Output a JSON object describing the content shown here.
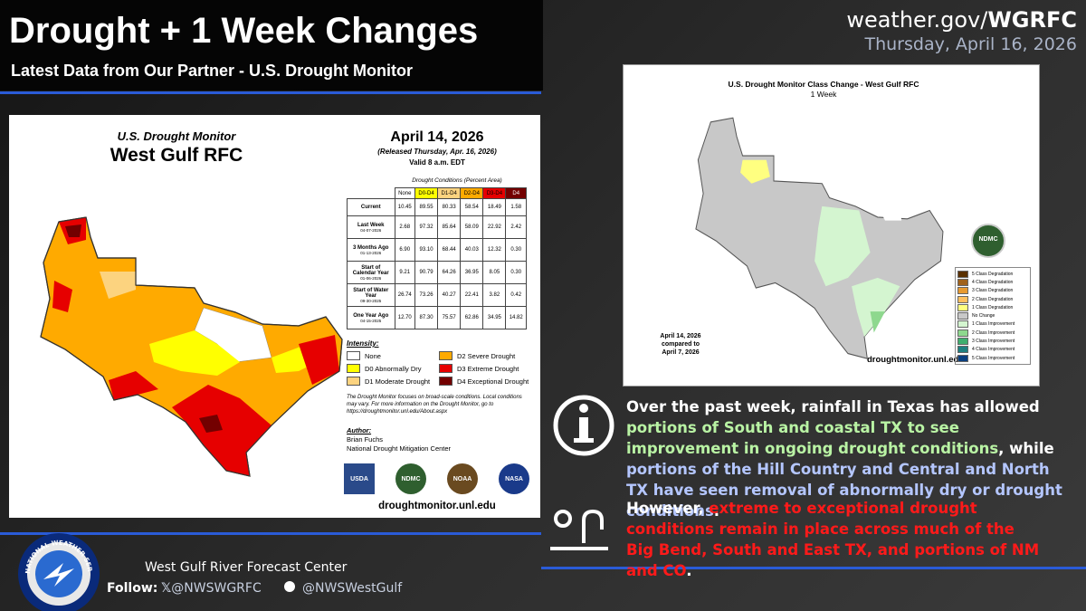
{
  "header": {
    "title": "Drought + 1 Week Changes",
    "subtitle": "Latest Data from Our Partner - U.S. Drought Monitor",
    "site_prefix": "weather.gov/",
    "site_bold": "WGRFC",
    "date": "Thursday, April 16, 2026"
  },
  "usdm": {
    "title": "U.S. Drought Monitor",
    "region": "West Gulf RFC",
    "date": "April 14, 2026",
    "released": "(Released Thursday, Apr. 16, 2026)",
    "valid": "Valid 8 a.m. EDT",
    "table_caption": "Drought Conditions (Percent Area)",
    "columns": [
      {
        "label": "None",
        "color": "#ffffff"
      },
      {
        "label": "D0-D4",
        "color": "#ffff00"
      },
      {
        "label": "D1-D4",
        "color": "#fcd37f"
      },
      {
        "label": "D2-D4",
        "color": "#ffaa00"
      },
      {
        "label": "D3-D4",
        "color": "#e60000"
      },
      {
        "label": "D4",
        "color": "#730000"
      }
    ],
    "rows": [
      {
        "label": "Current",
        "sublabel": null,
        "cells": [
          "10.45",
          "89.55",
          "80.33",
          "58.54",
          "18.49",
          "1.58"
        ]
      },
      {
        "label": "Last Week",
        "sublabel": "04-07-2026",
        "cells": [
          "2.68",
          "97.32",
          "85.64",
          "58.09",
          "22.92",
          "2.42"
        ]
      },
      {
        "label": "3 Months Ago",
        "sublabel": "01-13-2026",
        "cells": [
          "6.90",
          "93.10",
          "68.44",
          "40.03",
          "12.32",
          "0.30"
        ]
      },
      {
        "label": "Start of Calendar Year",
        "sublabel": "01-06-2026",
        "cells": [
          "9.21",
          "90.79",
          "64.26",
          "36.95",
          "8.05",
          "0.30"
        ]
      },
      {
        "label": "Start of Water Year",
        "sublabel": "09-30-2025",
        "cells": [
          "26.74",
          "73.26",
          "40.27",
          "22.41",
          "3.82",
          "0.42"
        ]
      },
      {
        "label": "One Year Ago",
        "sublabel": "04-15-2025",
        "cells": [
          "12.70",
          "87.30",
          "75.57",
          "62.86",
          "34.95",
          "14.82"
        ]
      }
    ],
    "intensity_title": "Intensity:",
    "intensity": [
      {
        "label": "None",
        "color": "#ffffff"
      },
      {
        "label": "D0 Abnormally Dry",
        "color": "#ffff00"
      },
      {
        "label": "D1 Moderate Drought",
        "color": "#fcd37f"
      },
      {
        "label": "D2 Severe Drought",
        "color": "#ffaa00"
      },
      {
        "label": "D3 Extreme Drought",
        "color": "#e60000"
      },
      {
        "label": "D4 Exceptional Drought",
        "color": "#730000"
      }
    ],
    "note": "The Drought Monitor focuses on broad-scale conditions. Local conditions may vary. For more information on the Drought Monitor, go to https://droughtmonitor.unl.edu/About.aspx",
    "author_label": "Author:",
    "author": "Brian Fuchs",
    "author_org": "National Drought Mitigation Center",
    "logos": [
      "USDA",
      "NDMC",
      "NOAA",
      "NASA"
    ],
    "url": "droughtmonitor.unl.edu"
  },
  "change": {
    "title": "U.S. Drought Monitor Class Change - West Gulf RFC",
    "subtitle": "1 Week",
    "compare": [
      "April 14, 2026",
      "compared to",
      "April 7, 2026"
    ],
    "url": "droughtmonitor.unl.edu",
    "logo": "NDMC",
    "legend": [
      {
        "label": "5 Class Degradation",
        "color": "#5a3000"
      },
      {
        "label": "4 Class Degradation",
        "color": "#a0621c"
      },
      {
        "label": "3 Class Degradation",
        "color": "#e89a30"
      },
      {
        "label": "2 Class Degradation",
        "color": "#ffc060"
      },
      {
        "label": "1 Class Degradation",
        "color": "#ffff80"
      },
      {
        "label": "No Change",
        "color": "#c8c8c8"
      },
      {
        "label": "1 Class Improvement",
        "color": "#d4f5d0"
      },
      {
        "label": "2 Class Improvement",
        "color": "#8ed88e"
      },
      {
        "label": "3 Class Improvement",
        "color": "#3fae6e"
      },
      {
        "label": "4 Class Improvement",
        "color": "#1f7f7f"
      },
      {
        "label": "5 Class Improvement",
        "color": "#0a3f7f"
      }
    ]
  },
  "info": [
    {
      "segments": [
        {
          "text": "Over the past week, rainfall in Texas has allowed ",
          "color": "#ffffff"
        },
        {
          "text": "portions of South and coastal TX to see improvement in ongoing drought conditions",
          "color": "#b9f3a4"
        },
        {
          "text": ", while ",
          "color": "#ffffff"
        },
        {
          "text": "portions of the Hill Country and Central and North TX have seen removal of abnormally dry or drought conditions",
          "color": "#b4c6ff"
        },
        {
          "text": ".",
          "color": "#ffffff"
        }
      ]
    },
    {
      "segments": [
        {
          "text": "However, ",
          "color": "#ffffff"
        },
        {
          "text": "extreme to exceptional drought conditions remain in place across much of the Big Bend, South and East TX, and portions of NM and CO",
          "color": "#ff1a1a"
        },
        {
          "text": ".",
          "color": "#ffffff"
        }
      ]
    }
  ],
  "footer": {
    "office": "West Gulf River Forecast Center",
    "follow": "Follow:",
    "x_handle": "@NWSWGRFC",
    "fb_handle": "@NWSWestGulf",
    "logo_text": "NATIONAL WEATHER SERVICE"
  }
}
